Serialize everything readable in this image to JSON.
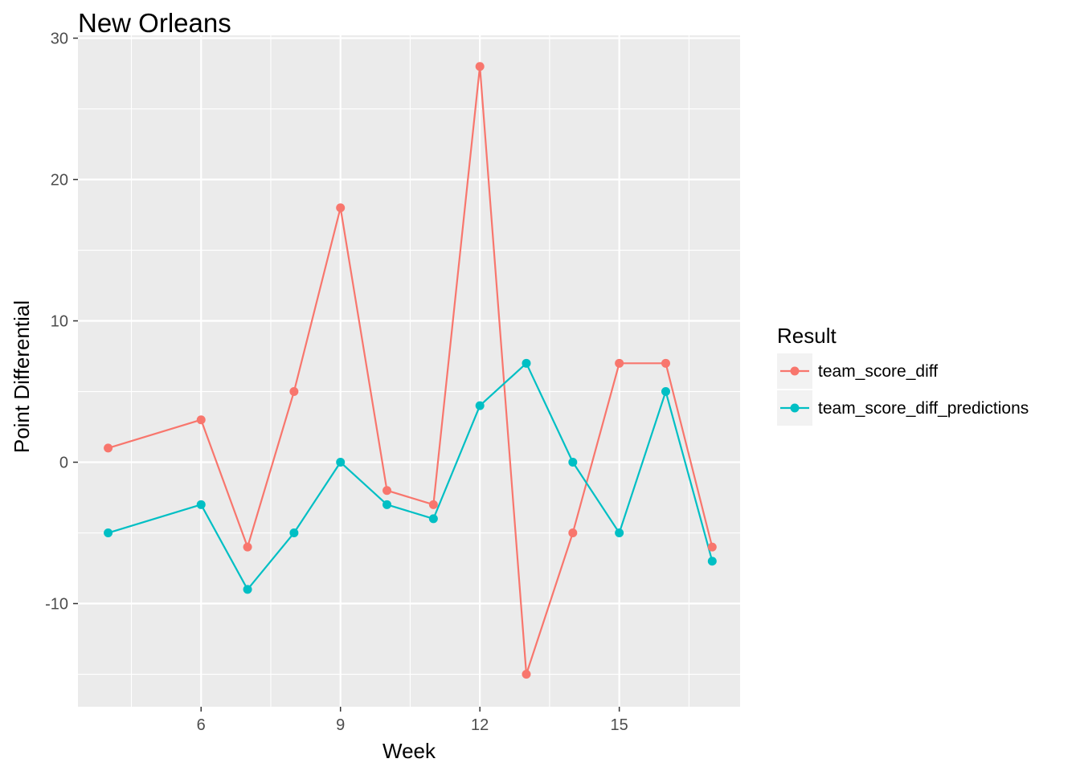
{
  "chart_data": {
    "type": "line",
    "title": "New Orleans",
    "xlabel": "Week",
    "ylabel": "Point Differential",
    "xlim": [
      3.35,
      17.6
    ],
    "ylim": [
      -17.3,
      30.2
    ],
    "x_ticks": [
      6,
      9,
      12,
      15
    ],
    "x_minor": [
      4.5,
      7.5,
      10.5,
      13.5,
      16.5
    ],
    "y_ticks": [
      -10,
      0,
      10,
      20,
      30
    ],
    "y_minor": [
      -15,
      -5,
      5,
      15,
      25
    ],
    "grid": true,
    "legend": {
      "title": "Result",
      "position": "right"
    },
    "x": [
      4,
      6,
      7,
      8,
      9,
      10,
      11,
      12,
      13,
      14,
      15,
      16,
      17
    ],
    "series": [
      {
        "name": "team_score_diff",
        "color": "#F8766D",
        "values": [
          1,
          3,
          -6,
          5,
          18,
          -2,
          -3,
          28,
          -15,
          -5,
          7,
          7,
          -6
        ]
      },
      {
        "name": "team_score_diff_predictions",
        "color": "#00BFC4",
        "values": [
          -5,
          -3,
          -9,
          -5,
          0,
          -3,
          -4,
          4,
          7,
          0,
          -5,
          5,
          -7
        ]
      }
    ]
  }
}
